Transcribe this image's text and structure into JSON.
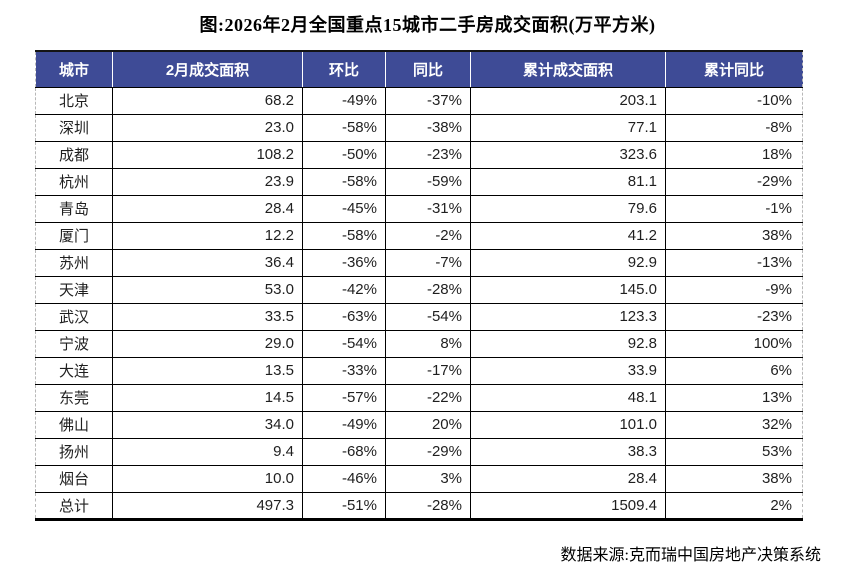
{
  "title": "图:2026年2月全国重点15城市二手房成交面积(万平方米)",
  "source": "数据来源:克而瑞中国房地产决策系统",
  "colors": {
    "header_bg": "#3E4B96",
    "header_text": "#FFFFFF",
    "body_text": "#1F1F1F",
    "grid_border": "#000000",
    "page_break_dash": "#B8B8B8"
  },
  "chart_data": {
    "type": "table",
    "title": "图:2026年2月全国重点15城市二手房成交面积(万平方米)",
    "columns": [
      "城市",
      "2月成交面积",
      "环比",
      "同比",
      "累计成交面积",
      "累计同比"
    ],
    "rows": [
      [
        "北京",
        "68.2",
        "-49%",
        "-37%",
        "203.1",
        "-10%"
      ],
      [
        "深圳",
        "23.0",
        "-58%",
        "-38%",
        "77.1",
        "-8%"
      ],
      [
        "成都",
        "108.2",
        "-50%",
        "-23%",
        "323.6",
        "18%"
      ],
      [
        "杭州",
        "23.9",
        "-58%",
        "-59%",
        "81.1",
        "-29%"
      ],
      [
        "青岛",
        "28.4",
        "-45%",
        "-31%",
        "79.6",
        "-1%"
      ],
      [
        "厦门",
        "12.2",
        "-58%",
        "-2%",
        "41.2",
        "38%"
      ],
      [
        "苏州",
        "36.4",
        "-36%",
        "-7%",
        "92.9",
        "-13%"
      ],
      [
        "天津",
        "53.0",
        "-42%",
        "-28%",
        "145.0",
        "-9%"
      ],
      [
        "武汉",
        "33.5",
        "-63%",
        "-54%",
        "123.3",
        "-23%"
      ],
      [
        "宁波",
        "29.0",
        "-54%",
        "8%",
        "92.8",
        "100%"
      ],
      [
        "大连",
        "13.5",
        "-33%",
        "-17%",
        "33.9",
        "6%"
      ],
      [
        "东莞",
        "14.5",
        "-57%",
        "-22%",
        "48.1",
        "13%"
      ],
      [
        "佛山",
        "34.0",
        "-49%",
        "20%",
        "101.0",
        "32%"
      ],
      [
        "扬州",
        "9.4",
        "-68%",
        "-29%",
        "38.3",
        "53%"
      ],
      [
        "烟台",
        "10.0",
        "-46%",
        "3%",
        "28.4",
        "38%"
      ],
      [
        "总计",
        "497.3",
        "-51%",
        "-28%",
        "1509.4",
        "2%"
      ]
    ],
    "notes": "values in 万平方米 (10k square meters); percent columns are month-over-month (环比), year-over-year (同比) and cumulative YoY (累计同比)"
  }
}
